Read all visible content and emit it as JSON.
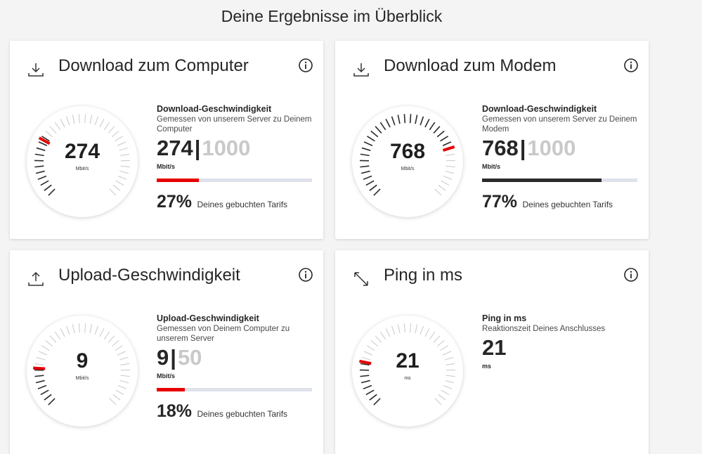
{
  "page": {
    "title": "Deine Ergebnisse im Überblick"
  },
  "colors": {
    "accent": "#e60000",
    "dark": "#2b2b2b",
    "track": "#dfe2ea"
  },
  "cards": {
    "download_computer": {
      "icon": "download-icon",
      "title": "Download zum Computer",
      "heading": "Download-Geschwindigkeit",
      "subtitle": "Gemessen von unserem Server zu Deinem Computer",
      "value": "274",
      "max": "1000",
      "unit": "Mbit/s",
      "gauge_unit": "Mbit/s",
      "percent": "27%",
      "percent_label": "Deines gebuchten Tarifs",
      "fill_fraction": 0.27,
      "fill_color": "#e60000",
      "needle_fraction": 0.274
    },
    "download_modem": {
      "icon": "download-icon",
      "title": "Download zum Modem",
      "heading": "Download-Geschwindigkeit",
      "subtitle": "Gemessen von unserem Server zu Deinem Modem",
      "value": "768",
      "max": "1000",
      "unit": "Mbit/s",
      "gauge_unit": "Mbit/s",
      "percent": "77%",
      "percent_label": "Deines gebuchten Tarifs",
      "fill_fraction": 0.77,
      "fill_color": "#2b2b2b",
      "needle_fraction": 0.768
    },
    "upload": {
      "icon": "upload-icon",
      "title": "Upload-Geschwindigkeit",
      "heading": "Upload-Geschwindigkeit",
      "subtitle": "Gemessen von Deinem Computer zu unserem Server",
      "value": "9",
      "max": "50",
      "unit": "Mbit/s",
      "gauge_unit": "Mbit/s",
      "percent": "18%",
      "percent_label": "Deines gebuchten Tarifs",
      "fill_fraction": 0.18,
      "fill_color": "#e60000",
      "needle_fraction": 0.18
    },
    "ping": {
      "icon": "ping-arrows-icon",
      "title": "Ping in ms",
      "heading": "Ping in ms",
      "subtitle": "Reaktionszeit Deines Anschlusses",
      "value": "21",
      "unit": "ms",
      "gauge_unit": "ms",
      "needle_fraction": 0.21
    }
  }
}
